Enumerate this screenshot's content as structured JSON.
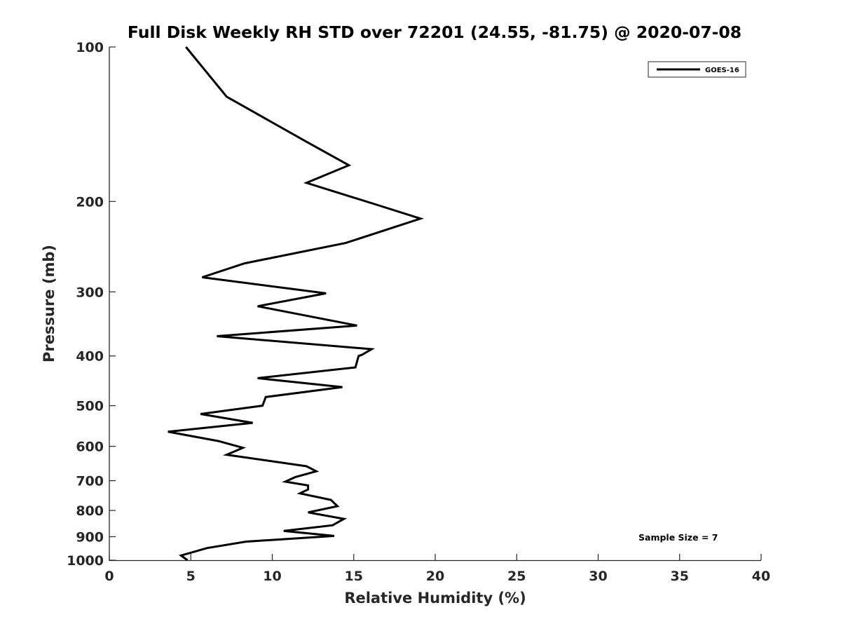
{
  "chart_data": {
    "type": "line",
    "title": "Full Disk Weekly RH STD over 72201 (24.55, -81.75) @ 2020-07-08",
    "xlabel": "Relative Humidity (%)",
    "ylabel": "Pressure (mb)",
    "xlim": [
      0,
      40
    ],
    "ylim": [
      100,
      1000
    ],
    "yscale": "log",
    "yreversed": true,
    "xticks": [
      0,
      5,
      10,
      15,
      20,
      25,
      30,
      35,
      40
    ],
    "yticks": [
      100,
      200,
      300,
      400,
      500,
      600,
      700,
      800,
      900,
      1000
    ],
    "grid": false,
    "legend_position": "top-right",
    "annotation": "Sample Size = 7",
    "series": [
      {
        "name": "GOES-16",
        "color": "#000000",
        "points": [
          [
            4.7,
            100
          ],
          [
            7.2,
            125
          ],
          [
            12.1,
            153
          ],
          [
            14.7,
            170
          ],
          [
            12.1,
            184
          ],
          [
            16.2,
            202
          ],
          [
            19.1,
            216
          ],
          [
            14.5,
            241
          ],
          [
            8.3,
            264
          ],
          [
            5.7,
            281
          ],
          [
            13.3,
            302
          ],
          [
            9.1,
            320
          ],
          [
            15.2,
            349
          ],
          [
            6.6,
            366
          ],
          [
            16.1,
            388
          ],
          [
            15.5,
            398
          ],
          [
            15.3,
            400
          ],
          [
            15.1,
            421
          ],
          [
            9.1,
            442
          ],
          [
            14.3,
            460
          ],
          [
            9.6,
            481
          ],
          [
            9.4,
            500
          ],
          [
            5.6,
            519
          ],
          [
            8.8,
            540
          ],
          [
            3.6,
            562
          ],
          [
            6.7,
            586
          ],
          [
            8.2,
            604
          ],
          [
            7.2,
            623
          ],
          [
            12.1,
            656
          ],
          [
            12.7,
            671
          ],
          [
            11.4,
            689
          ],
          [
            10.8,
            703
          ],
          [
            12.2,
            715
          ],
          [
            12.2,
            728
          ],
          [
            11.7,
            741
          ],
          [
            13.6,
            763
          ],
          [
            14.0,
            785
          ],
          [
            12.2,
            807
          ],
          [
            14.4,
            831
          ],
          [
            13.7,
            855
          ],
          [
            10.7,
            877
          ],
          [
            13.8,
            897
          ],
          [
            8.4,
            920
          ],
          [
            6.0,
            947
          ],
          [
            4.4,
            979
          ],
          [
            4.8,
            1000
          ]
        ]
      }
    ]
  }
}
